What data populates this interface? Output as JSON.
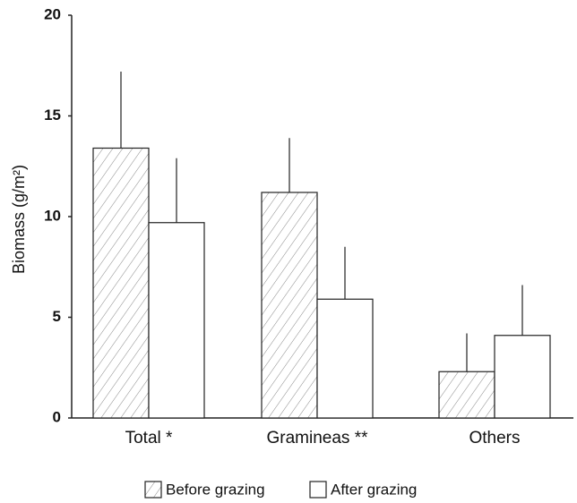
{
  "chart_data": {
    "type": "bar",
    "ylabel": "Biomass (g/m²)",
    "categories": [
      "Total *",
      "Gramineas **",
      "Others"
    ],
    "series": [
      {
        "name": "Before grazing",
        "color": "#555555",
        "hatch": true,
        "values": [
          13.4,
          11.2,
          2.3
        ],
        "errors": [
          3.8,
          2.7,
          1.9
        ]
      },
      {
        "name": "After grazing",
        "color": "#ffffff",
        "hatch": false,
        "values": [
          9.7,
          5.9,
          4.1
        ],
        "errors": [
          3.2,
          2.6,
          2.5
        ]
      }
    ],
    "ylim": [
      0,
      20
    ],
    "yticks": [
      0,
      5,
      10,
      15,
      20
    ],
    "grid": false
  }
}
